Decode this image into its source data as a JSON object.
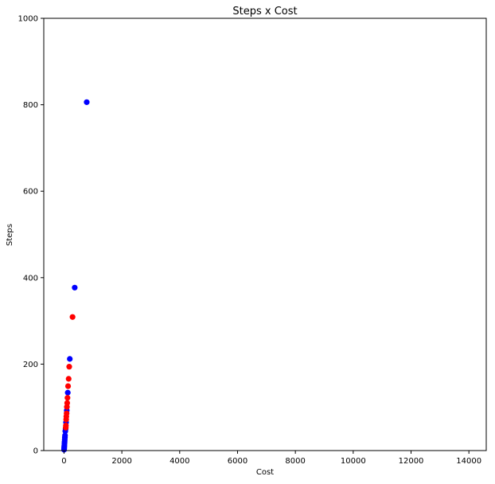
{
  "chart_data": {
    "type": "scatter",
    "title": "Steps x Cost",
    "xlabel": "Cost",
    "ylabel": "Steps",
    "xlim": [
      -700,
      14600
    ],
    "ylim": [
      0,
      1000
    ],
    "xticks": [
      0,
      2000,
      4000,
      6000,
      8000,
      10000,
      12000,
      14000
    ],
    "yticks": [
      0,
      200,
      400,
      600,
      800,
      1000
    ],
    "grid": false,
    "legend": "none",
    "series": [
      {
        "color": "#0000ff",
        "points": [
          {
            "x": 785,
            "y": 806
          },
          {
            "x": 370,
            "y": 377
          },
          {
            "x": 200,
            "y": 212
          },
          {
            "x": 130,
            "y": 134
          },
          {
            "x": 95,
            "y": 93
          },
          {
            "x": 70,
            "y": 65
          },
          {
            "x": 55,
            "y": 50
          },
          {
            "x": 45,
            "y": 45
          },
          {
            "x": 35,
            "y": 35
          },
          {
            "x": 30,
            "y": 30
          },
          {
            "x": 25,
            "y": 25
          },
          {
            "x": 20,
            "y": 20
          },
          {
            "x": 16,
            "y": 16
          },
          {
            "x": 12,
            "y": 12
          },
          {
            "x": 9,
            "y": 9
          },
          {
            "x": 6,
            "y": 6
          },
          {
            "x": 4,
            "y": 4
          },
          {
            "x": 2,
            "y": 2
          }
        ]
      },
      {
        "color": "#ff0000",
        "points": [
          {
            "x": 295,
            "y": 309
          },
          {
            "x": 180,
            "y": 194
          },
          {
            "x": 160,
            "y": 166
          },
          {
            "x": 140,
            "y": 149
          },
          {
            "x": 120,
            "y": 122
          },
          {
            "x": 110,
            "y": 110
          },
          {
            "x": 100,
            "y": 101
          },
          {
            "x": 90,
            "y": 86
          },
          {
            "x": 80,
            "y": 79
          },
          {
            "x": 75,
            "y": 72
          },
          {
            "x": 65,
            "y": 58
          },
          {
            "x": 60,
            "y": 53
          }
        ]
      }
    ]
  }
}
